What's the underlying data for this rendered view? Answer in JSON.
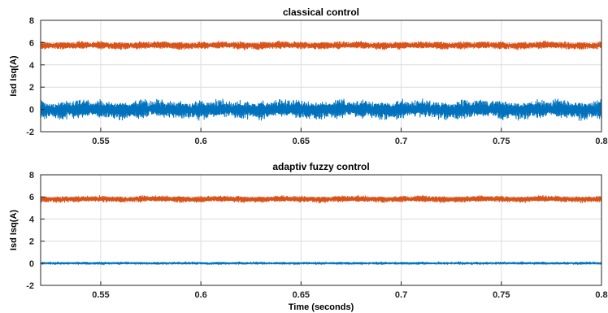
{
  "chart_data": [
    {
      "type": "line",
      "title": "classical control",
      "xlabel": "",
      "ylabel": "Isd Isq(A)",
      "xlim": [
        0.52,
        0.8
      ],
      "ylim": [
        -2,
        8
      ],
      "grid": true,
      "xticks": [
        0.55,
        0.6,
        0.65,
        0.7,
        0.75,
        0.8
      ],
      "xtick_labels": [
        "0.55",
        "0.6",
        "0.65",
        "0.7",
        "0.75",
        "0.8"
      ],
      "yticks": [
        -2,
        0,
        2,
        4,
        6,
        8
      ],
      "ytick_labels": [
        "-2",
        "0",
        "2",
        "4",
        "6",
        "8"
      ],
      "series": [
        {
          "color": "#d95319",
          "mean": 5.75,
          "ripple_amplitude": 0.35,
          "ripple_envelope_period": 0.01,
          "description_of_signal": "high-frequency ripple"
        },
        {
          "color": "#0072bd",
          "mean": 0.0,
          "ripple_amplitude": 0.85,
          "ripple_envelope_period": 0.01,
          "description_of_signal": "high-frequency ripple"
        }
      ]
    },
    {
      "type": "line",
      "title": "adaptiv fuzzy control",
      "xlabel": "Time (seconds)",
      "ylabel": "Isd Isq(A)",
      "xlim": [
        0.52,
        0.8
      ],
      "ylim": [
        -2,
        8
      ],
      "grid": true,
      "xticks": [
        0.55,
        0.6,
        0.65,
        0.7,
        0.75,
        0.8
      ],
      "xtick_labels": [
        "0.55",
        "0.6",
        "0.65",
        "0.7",
        "0.75",
        "0.8"
      ],
      "yticks": [
        -2,
        0,
        2,
        4,
        6,
        8
      ],
      "ytick_labels": [
        "-2",
        "0",
        "2",
        "4",
        "6",
        "8"
      ],
      "series": [
        {
          "color": "#d95319",
          "mean": 5.8,
          "ripple_amplitude": 0.3,
          "ripple_envelope_period": 0.01,
          "description_of_signal": "high-frequency ripple"
        },
        {
          "color": "#0072bd",
          "mean": 0.0,
          "ripple_amplitude": 0.12,
          "ripple_envelope_period": 0.01,
          "description_of_signal": "high-frequency ripple"
        }
      ]
    }
  ]
}
